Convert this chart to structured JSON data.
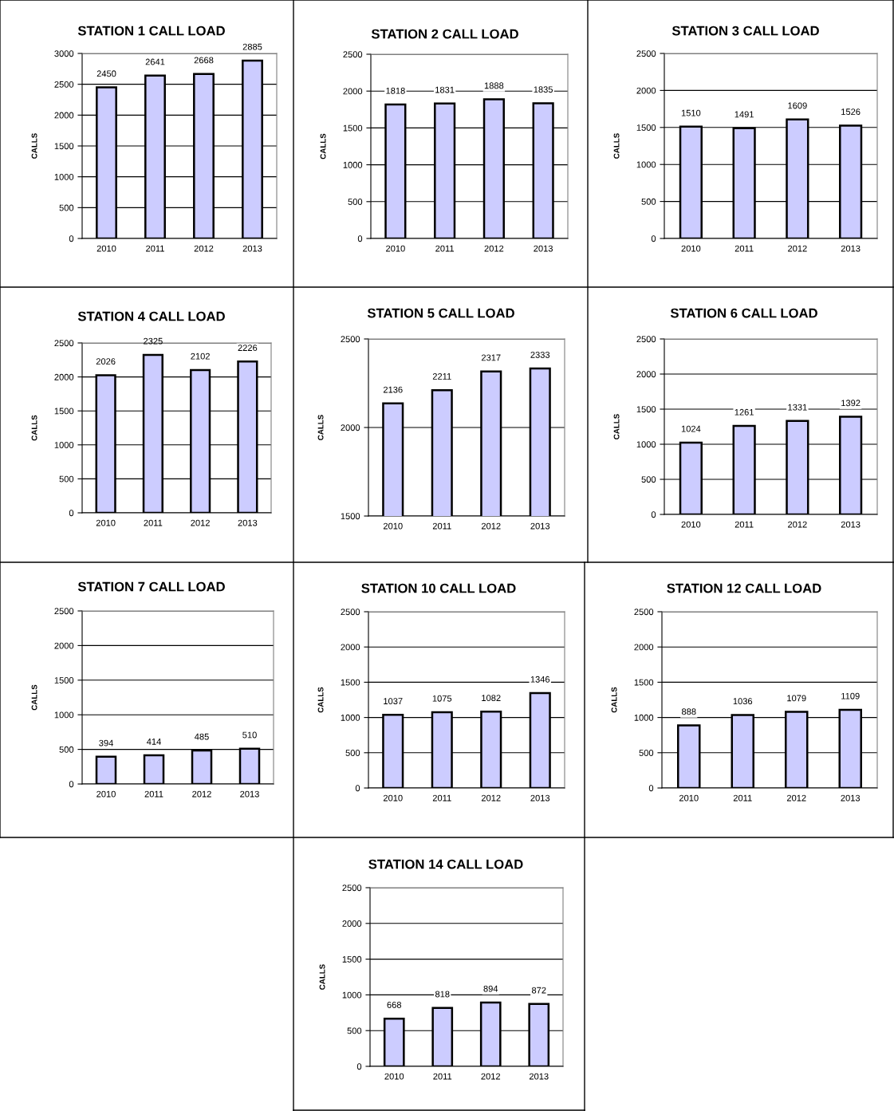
{
  "chart_data": [
    {
      "type": "bar",
      "title": "STATION 1 CALL LOAD",
      "ylabel": "CALLS",
      "categories": [
        "2010",
        "2011",
        "2012",
        "2013"
      ],
      "values": [
        2450,
        2641,
        2668,
        2885
      ],
      "color": "#ccccff",
      "ylim": [
        0,
        3000
      ],
      "yticks": [
        0,
        500,
        1000,
        1500,
        2000,
        2500,
        3000
      ],
      "grid": "y",
      "data_labels": true
    },
    {
      "type": "bar",
      "title": "STATION 2 CALL LOAD",
      "ylabel": "CALLS",
      "categories": [
        "2010",
        "2011",
        "2012",
        "2013"
      ],
      "values": [
        1818,
        1831,
        1888,
        1835
      ],
      "color": "#ccccff",
      "ylim": [
        0,
        2500
      ],
      "yticks": [
        0,
        500,
        1000,
        1500,
        2000,
        2500
      ],
      "grid": "y",
      "data_labels": true
    },
    {
      "type": "bar",
      "title": "STATION 3 CALL LOAD",
      "ylabel": "CALLS",
      "categories": [
        "2010",
        "2011",
        "2012",
        "2013"
      ],
      "values": [
        1510,
        1491,
        1609,
        1526
      ],
      "color": "#ccccff",
      "ylim": [
        0,
        2500
      ],
      "yticks": [
        0,
        500,
        1000,
        1500,
        2000,
        2500
      ],
      "grid": "y",
      "data_labels": true
    },
    {
      "type": "bar",
      "title": "STATION 4 CALL LOAD",
      "ylabel": "CALLS",
      "categories": [
        "2010",
        "2011",
        "2012",
        "2013"
      ],
      "values": [
        2026,
        2325,
        2102,
        2226
      ],
      "color": "#ccccff",
      "ylim": [
        0,
        2500
      ],
      "yticks": [
        0,
        500,
        1000,
        1500,
        2000,
        2500
      ],
      "grid": "y",
      "data_labels": true
    },
    {
      "type": "bar",
      "title": "STATION 5 CALL LOAD",
      "ylabel": "CALLS",
      "categories": [
        "2010",
        "2011",
        "2012",
        "2013"
      ],
      "values": [
        2136,
        2211,
        2317,
        2333
      ],
      "color": "#ccccff",
      "ylim": [
        1500,
        2500
      ],
      "yticks": [
        1500,
        2000,
        2500
      ],
      "grid": "y",
      "data_labels": true
    },
    {
      "type": "bar",
      "title": "STATION 6 CALL LOAD",
      "ylabel": "CALLS",
      "categories": [
        "2010",
        "2011",
        "2012",
        "2013"
      ],
      "values": [
        1024,
        1261,
        1331,
        1392
      ],
      "color": "#ccccff",
      "ylim": [
        0,
        2500
      ],
      "yticks": [
        0,
        500,
        1000,
        1500,
        2000,
        2500
      ],
      "grid": "y",
      "data_labels": true
    },
    {
      "type": "bar",
      "title": "STATION 7 CALL LOAD",
      "ylabel": "CALLS",
      "categories": [
        "2010",
        "2011",
        "2012",
        "2013"
      ],
      "values": [
        394,
        414,
        485,
        510
      ],
      "color": "#ccccff",
      "ylim": [
        0,
        2500
      ],
      "yticks": [
        0,
        500,
        1000,
        1500,
        2000,
        2500
      ],
      "grid": "y",
      "data_labels": true
    },
    {
      "type": "bar",
      "title": "STATION 10 CALL LOAD",
      "ylabel": "CALLS",
      "categories": [
        "2010",
        "2011",
        "2012",
        "2013"
      ],
      "values": [
        1037,
        1075,
        1082,
        1346
      ],
      "color": "#ccccff",
      "ylim": [
        0,
        2500
      ],
      "yticks": [
        0,
        500,
        1000,
        1500,
        2000,
        2500
      ],
      "grid": "y",
      "data_labels": true
    },
    {
      "type": "bar",
      "title": "STATION 12 CALL LOAD",
      "ylabel": "CALLS",
      "categories": [
        "2010",
        "2011",
        "2012",
        "2013"
      ],
      "values": [
        888,
        1036,
        1079,
        1109
      ],
      "color": "#ccccff",
      "ylim": [
        0,
        2500
      ],
      "yticks": [
        0,
        500,
        1000,
        1500,
        2000,
        2500
      ],
      "grid": "y",
      "data_labels": true
    },
    {
      "type": "bar",
      "title": "STATION 14 CALL LOAD",
      "ylabel": "CALLS",
      "categories": [
        "2010",
        "2011",
        "2012",
        "2013"
      ],
      "values": [
        668,
        818,
        894,
        872
      ],
      "color": "#ccccff",
      "ylim": [
        0,
        2500
      ],
      "yticks": [
        0,
        500,
        1000,
        1500,
        2000,
        2500
      ],
      "grid": "y",
      "data_labels": true
    }
  ]
}
